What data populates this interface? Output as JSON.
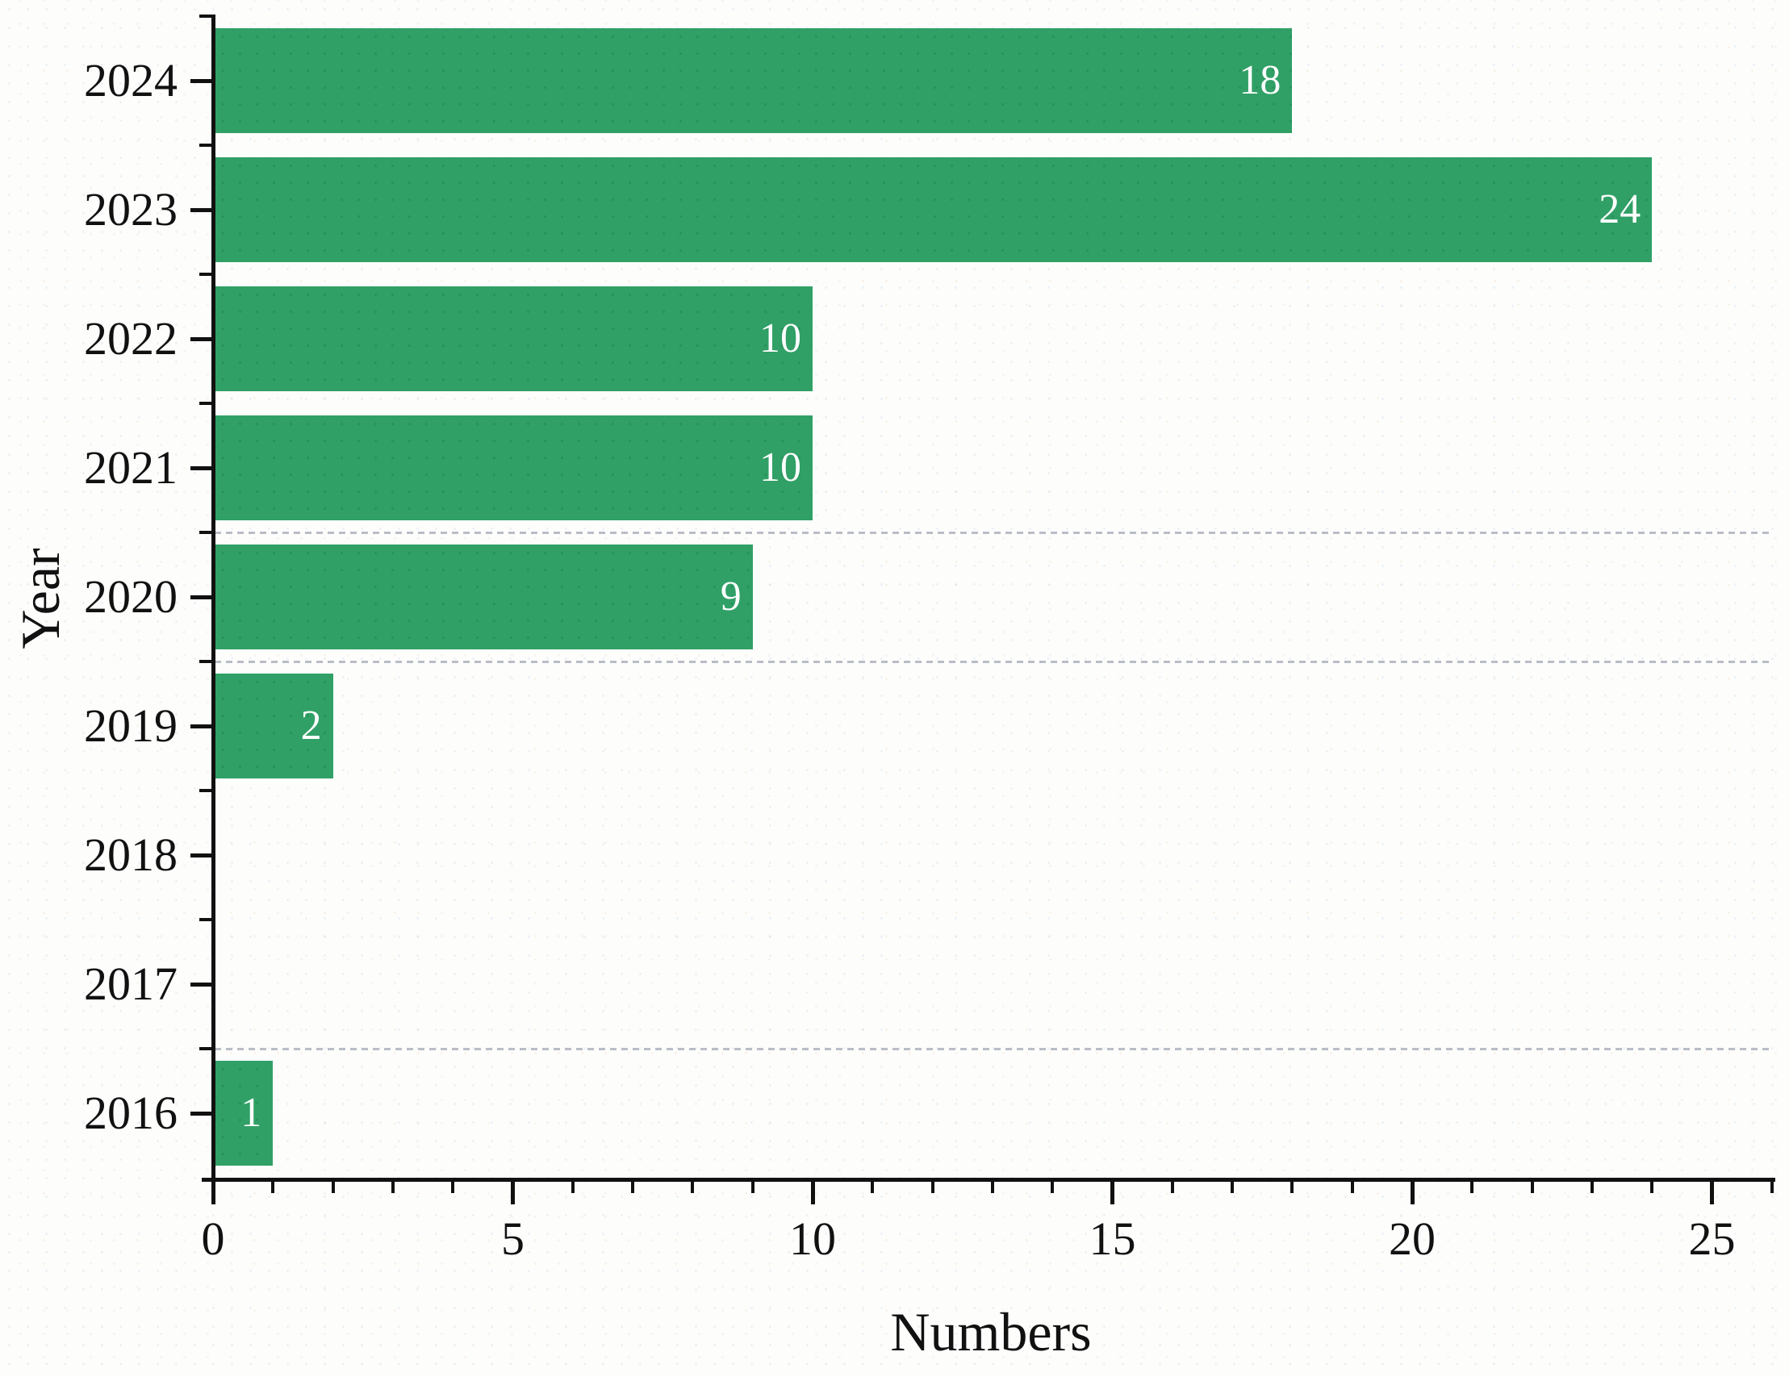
{
  "chart_data": {
    "type": "bar",
    "orientation": "horizontal",
    "title": "",
    "xlabel": "Numbers",
    "ylabel": "Year",
    "categories": [
      "2024",
      "2023",
      "2022",
      "2021",
      "2020",
      "2019",
      "2018",
      "2017",
      "2016"
    ],
    "values": [
      18,
      24,
      10,
      10,
      9,
      2,
      0,
      0,
      1
    ],
    "bar_value_labels": [
      "18",
      "24",
      "10",
      "10",
      "9",
      "2",
      "",
      "",
      "1"
    ],
    "xlim": [
      0,
      26
    ],
    "x_major_ticks": [
      0,
      5,
      10,
      15,
      20,
      25
    ],
    "x_tick_labels": [
      "0",
      "5",
      "10",
      "15",
      "20",
      "25"
    ],
    "x_minor_tick_step": 1,
    "y_minor_ticks": "at every category boundary",
    "legend_position": "none",
    "grid": "dashed horizontal lines at selected category boundaries only",
    "gridline_after_category": [
      "2021",
      "2020",
      "2017"
    ],
    "colors": {
      "bar": "#30a066",
      "grid": "#b9bdc6",
      "axis": "#111111",
      "tick_label": "#111111",
      "value_label": "#ffffff",
      "background": "#fdfdfc"
    }
  }
}
